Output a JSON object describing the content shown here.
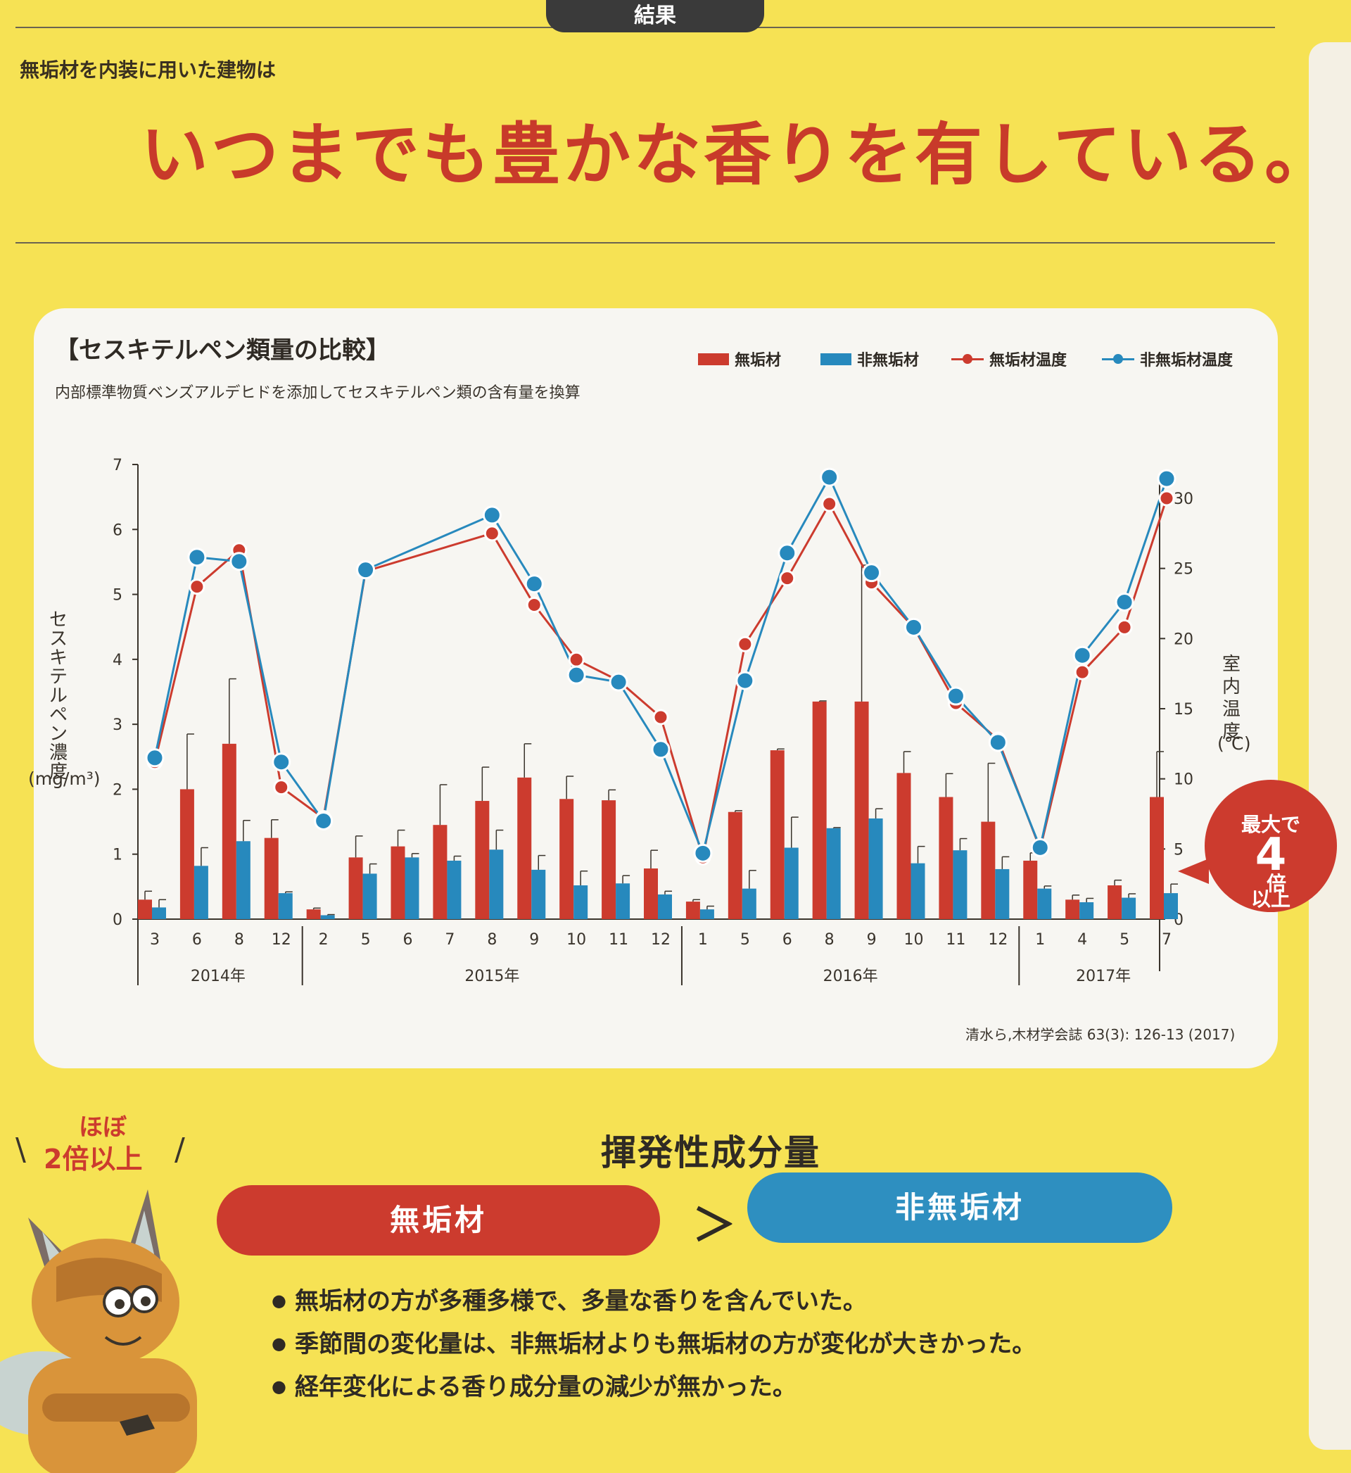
{
  "header": {
    "tab_label": "結果",
    "lead": "無垢材を内装に用いた建物は",
    "headline": "いつまでも豊かな香りを有している。"
  },
  "chart_data": {
    "type": "bar",
    "title": "【セスキテルペン類量の比較】",
    "subtitle": "内部標準物質ベンズアルデヒドを添加してセスキテルペン類の含有量を換算",
    "ylabel": "セスキテルペン濃度",
    "ylabel_unit": "(mg/m³)",
    "y2label": "室内温度",
    "y2label_unit": "(℃)",
    "ylim": [
      0,
      7
    ],
    "yticks": [
      "0",
      "1",
      "2",
      "3",
      "4",
      "5",
      "6",
      "7"
    ],
    "y2lim": [
      0,
      32.5
    ],
    "y2ticks": [
      "0",
      "5",
      "10",
      "15",
      "20",
      "25",
      "30"
    ],
    "categories": [
      "3",
      "6",
      "8",
      "12",
      "2",
      "5",
      "6",
      "7",
      "8",
      "9",
      "10",
      "11",
      "12",
      "1",
      "5",
      "6",
      "8",
      "9",
      "10",
      "11",
      "12",
      "1",
      "4",
      "5",
      "7"
    ],
    "year_groups": [
      {
        "label": "2014年",
        "count": 4
      },
      {
        "label": "2015年",
        "count": 9
      },
      {
        "label": "2016年",
        "count": 8
      },
      {
        "label": "2017年",
        "count": 4
      }
    ],
    "legend": [
      "無垢材",
      "非無垢材",
      "無垢材温度",
      "非無垢材温度"
    ],
    "series": [
      {
        "name": "無垢材",
        "kind": "bar",
        "color": "#cc3b2e",
        "values": [
          0.3,
          2.0,
          2.7,
          1.25,
          0.15,
          0.95,
          1.12,
          1.45,
          1.82,
          2.18,
          1.85,
          1.83,
          0.78,
          0.27,
          1.65,
          2.6,
          3.35,
          3.35,
          2.25,
          1.88,
          1.5,
          0.9,
          0.3,
          0.52,
          1.88
        ],
        "error": [
          0.13,
          0.85,
          1.0,
          0.28,
          0.02,
          0.33,
          0.25,
          0.62,
          0.52,
          0.52,
          0.35,
          0.16,
          0.28,
          0.03,
          0.02,
          0.02,
          0.01,
          2.1,
          0.33,
          0.36,
          0.9,
          0.12,
          0.07,
          0.08,
          0.7
        ]
      },
      {
        "name": "非無垢材",
        "kind": "bar",
        "color": "#2789bd",
        "values": [
          0.18,
          0.82,
          1.2,
          0.4,
          0.06,
          0.7,
          0.95,
          0.9,
          1.07,
          0.76,
          0.52,
          0.55,
          0.38,
          0.15,
          0.47,
          1.1,
          1.4,
          1.55,
          0.86,
          1.06,
          0.77,
          0.47,
          0.26,
          0.33,
          0.4
        ],
        "error": [
          0.12,
          0.28,
          0.32,
          0.02,
          0.01,
          0.15,
          0.06,
          0.07,
          0.3,
          0.22,
          0.22,
          0.12,
          0.05,
          0.05,
          0.28,
          0.47,
          0.01,
          0.15,
          0.26,
          0.18,
          0.19,
          0.04,
          0.06,
          0.06,
          0.14
        ]
      },
      {
        "name": "無垢材温度",
        "kind": "line",
        "axis": "right",
        "color": "#cc3b2e",
        "values": [
          11.2,
          23.7,
          26.3,
          9.4,
          7.2,
          24.8,
          null,
          null,
          27.5,
          22.4,
          18.5,
          17.0,
          14.4,
          4.4,
          19.6,
          24.3,
          29.6,
          24.0,
          20.8,
          15.4,
          12.8,
          5.0,
          17.6,
          20.8,
          30.0
        ]
      },
      {
        "name": "非無垢材温度",
        "kind": "line",
        "axis": "right",
        "color": "#2789bd",
        "values": [
          11.5,
          25.8,
          25.5,
          11.2,
          7.0,
          24.9,
          null,
          null,
          28.8,
          23.9,
          17.4,
          16.9,
          12.1,
          4.7,
          17.0,
          26.1,
          31.5,
          24.7,
          20.8,
          15.9,
          12.6,
          5.1,
          18.8,
          22.6,
          31.4
        ]
      }
    ],
    "source": "清水ら,木材学会誌 63(3): 126-13 (2017)"
  },
  "badge": {
    "line1": "最大で",
    "number": "4",
    "suffix": "倍",
    "line3": "以上"
  },
  "summary": {
    "hobo_1": "ほぼ",
    "hobo_2": "2倍以上",
    "title": "揮発性成分量",
    "left_pill": "無垢材",
    "comparator": "＞",
    "right_pill": "非無垢材",
    "bullets": [
      "無垢材の方が多種多様で、多量な香りを含んでいた。",
      "季節間の変化量は、非無垢材よりも無垢材の方が変化が大きかった。",
      "経年変化による香り成分量の減少が無かった。"
    ]
  },
  "colors": {
    "accent_red": "#cc3b2e",
    "accent_blue": "#2789bd",
    "page_yellow": "#f6e254"
  }
}
